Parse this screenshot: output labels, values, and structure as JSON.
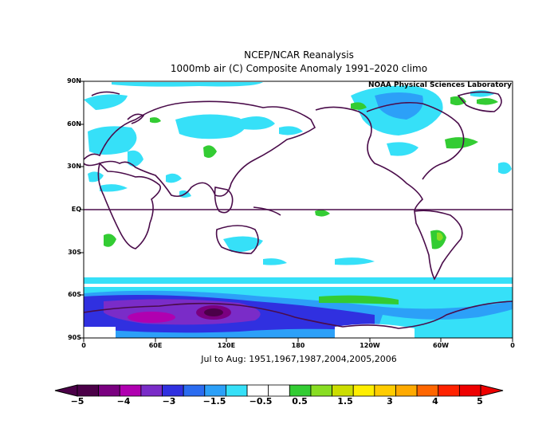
{
  "title": "NCEP/NCAR Reanalysis",
  "subtitle": "1000mb air (C) Composite Anomaly 1991–2020 climo",
  "credit": "NOAA Physical Sciences Laboratory",
  "footer": "Jul to Aug: 1951,1967,1987,2004,2005,2006",
  "latitude_labels": [
    "90N",
    "60N",
    "30N",
    "EQ",
    "30S",
    "60S",
    "90S"
  ],
  "longitude_labels": [
    "0",
    "60E",
    "120E",
    "180",
    "120W",
    "60W",
    "0"
  ],
  "colorbar": {
    "labels": [
      "−5",
      "−4",
      "−3",
      "−1.5",
      "−0.5",
      "0.5",
      "1.5",
      "3",
      "4",
      "5"
    ],
    "colors": [
      "#4b0048",
      "#7a0080",
      "#b000b0",
      "#7a2cc8",
      "#3030e0",
      "#2b6cf0",
      "#2ca0f8",
      "#36e0f8",
      "#ffffff",
      "#ffffff",
      "#33cc33",
      "#88dd22",
      "#ccdd00",
      "#ffee00",
      "#ffcc00",
      "#ffaa00",
      "#ff6600",
      "#ff2200",
      "#ee0000"
    ]
  }
}
